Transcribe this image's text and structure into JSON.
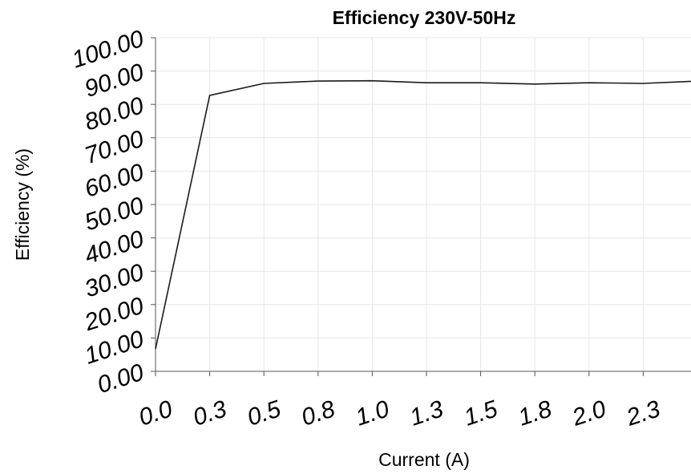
{
  "chart_data": {
    "type": "line",
    "title": "Efficiency 230V-50Hz",
    "x_label": "Current (A)",
    "y_label": "Efficiency (%)",
    "x": [
      0,
      0.25,
      0.5,
      0.75,
      1.0,
      1.25,
      1.5,
      1.75,
      2.0,
      2.25,
      2.5
    ],
    "series": [
      {
        "name": "Efficiency",
        "color": "#1a1a1a",
        "values": [
          6.7,
          82.7,
          86.3,
          87.0,
          87.1,
          86.5,
          86.5,
          86.1,
          86.5,
          86.3,
          87.0
        ]
      }
    ],
    "xlim": [
      0,
      2.5
    ],
    "xticks": [
      {
        "value": 0,
        "label": "0.0"
      },
      {
        "value": 0.25,
        "label": "0.3"
      },
      {
        "value": 0.5,
        "label": "0.5"
      },
      {
        "value": 0.75,
        "label": "0.8"
      },
      {
        "value": 1.0,
        "label": "1.0"
      },
      {
        "value": 1.25,
        "label": "1.3"
      },
      {
        "value": 1.5,
        "label": "1.5"
      },
      {
        "value": 1.75,
        "label": "1.8"
      },
      {
        "value": 2.0,
        "label": "2.0"
      },
      {
        "value": 2.25,
        "label": "2.3"
      }
    ],
    "ylim": [
      0,
      100
    ],
    "yticks": [
      {
        "value": 0,
        "label": "0.00"
      },
      {
        "value": 10,
        "label": "10.00"
      },
      {
        "value": 20,
        "label": "20.00"
      },
      {
        "value": 30,
        "label": "30.00"
      },
      {
        "value": 40,
        "label": "40.00"
      },
      {
        "value": 50,
        "label": "50.00"
      },
      {
        "value": 60,
        "label": "60.00"
      },
      {
        "value": 70,
        "label": "70.00"
      },
      {
        "value": 80,
        "label": "80.00"
      },
      {
        "value": 90,
        "label": "90.00"
      },
      {
        "value": 100,
        "label": "100.00"
      }
    ],
    "grid": true
  }
}
